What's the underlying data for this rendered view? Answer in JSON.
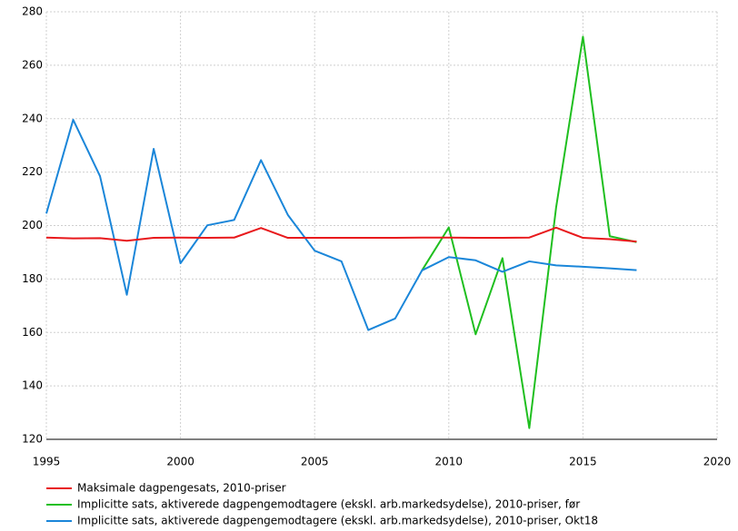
{
  "chart_data": {
    "type": "line",
    "x": [
      1995,
      1996,
      1997,
      1998,
      1999,
      2000,
      2001,
      2002,
      2003,
      2004,
      2005,
      2006,
      2007,
      2008,
      2009,
      2010,
      2011,
      2012,
      2013,
      2014,
      2015,
      2016,
      2017
    ],
    "series": [
      {
        "name": "Maksimale dagpengesats, 2010-priser",
        "color": "#e8191c",
        "values": [
          195.5,
          195.2,
          195.3,
          194.3,
          195.4,
          195.5,
          195.4,
          195.5,
          199.1,
          195.4,
          195.4,
          195.4,
          195.4,
          195.4,
          195.5,
          195.5,
          195.4,
          195.4,
          195.5,
          199.2,
          195.4,
          194.9,
          194.0
        ]
      },
      {
        "name": "Implicitte sats, aktiverede dagpengemodtagere (ekskl. arb.markedsydelse), 2010-priser, før",
        "color": "#1fbf1f",
        "values": [
          null,
          null,
          null,
          null,
          null,
          null,
          null,
          null,
          null,
          null,
          null,
          null,
          null,
          null,
          183.2,
          199.3,
          159.3,
          187.8,
          124.2,
          206.8,
          270.7,
          196.0,
          193.8
        ]
      },
      {
        "name": "Implicitte sats, aktiverede dagpengemodtagere (ekskl. arb.markedsydelse), 2010-priser, Okt18",
        "color": "#1a86d9",
        "values": [
          204.5,
          239.6,
          218.5,
          174.1,
          228.7,
          185.9,
          200.1,
          202.1,
          224.5,
          204.0,
          190.6,
          186.6,
          160.9,
          165.2,
          183.2,
          188.2,
          187.0,
          182.7,
          186.6,
          185.1,
          184.6,
          184.0,
          183.3
        ]
      }
    ],
    "xlim": [
      1995,
      2020
    ],
    "xticks": [
      1995,
      2000,
      2005,
      2010,
      2015,
      2020
    ],
    "ylim": [
      120,
      280
    ],
    "yticks": [
      120,
      140,
      160,
      180,
      200,
      220,
      240,
      260,
      280
    ],
    "grid": true,
    "legend": "bottom"
  }
}
